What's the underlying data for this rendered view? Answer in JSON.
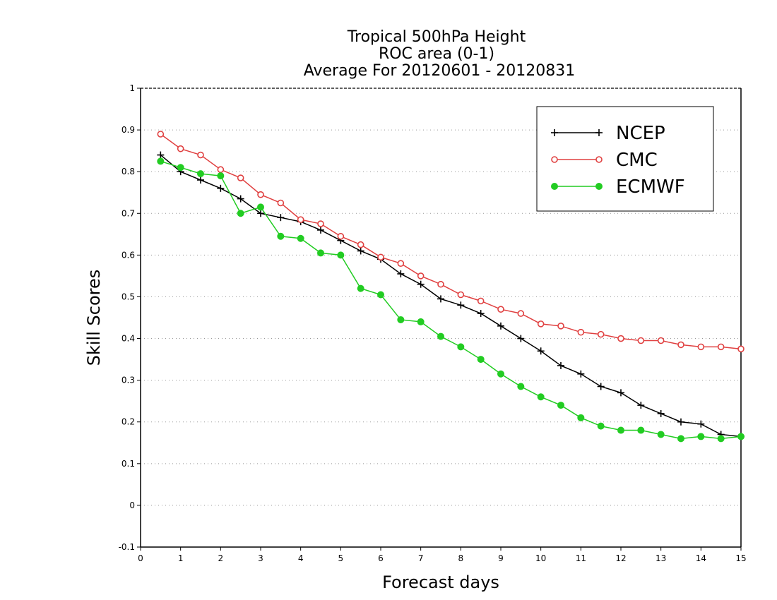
{
  "chart_data": {
    "type": "line",
    "title_lines": [
      "Tropical 500hPa Height",
      "ROC area (0-1)",
      "Average For 20120601 - 20120831"
    ],
    "xlabel": "Forecast days",
    "ylabel": "Skill Scores",
    "xlim": [
      0,
      15
    ],
    "ylim": [
      -0.1,
      1
    ],
    "x_ticks": [
      "0",
      "1",
      "2",
      "3",
      "4",
      "5",
      "6",
      "7",
      "8",
      "9",
      "10",
      "11",
      "12",
      "13",
      "14",
      "15"
    ],
    "y_ticks": [
      "-0.1",
      "0",
      "0.1",
      "0.2",
      "0.3",
      "0.4",
      "0.5",
      "0.6",
      "0.7",
      "0.8",
      "0.9",
      "1"
    ],
    "grid": "horizontal dotted",
    "legend_position": "top-right",
    "x": [
      0.5,
      1,
      1.5,
      2,
      2.5,
      3,
      3.5,
      4,
      4.5,
      5,
      5.5,
      6,
      6.5,
      7,
      7.5,
      8,
      8.5,
      9,
      9.5,
      10,
      10.5,
      11,
      11.5,
      12,
      12.5,
      13,
      13.5,
      14,
      14.5,
      15
    ],
    "series": [
      {
        "name": "NCEP",
        "color": "#000000",
        "marker": "plus",
        "values": [
          0.84,
          0.8,
          0.78,
          0.76,
          0.735,
          0.7,
          0.69,
          0.68,
          0.66,
          0.635,
          0.61,
          0.59,
          0.555,
          0.53,
          0.495,
          0.48,
          0.46,
          0.43,
          0.4,
          0.37,
          0.335,
          0.315,
          0.285,
          0.27,
          0.24,
          0.22,
          0.2,
          0.195,
          0.17,
          0.165
        ]
      },
      {
        "name": "CMC",
        "color": "#e04040",
        "marker": "open-circle",
        "values": [
          0.89,
          0.855,
          0.84,
          0.805,
          0.785,
          0.745,
          0.725,
          0.685,
          0.675,
          0.645,
          0.625,
          0.595,
          0.58,
          0.55,
          0.53,
          0.505,
          0.49,
          0.47,
          0.46,
          0.435,
          0.43,
          0.415,
          0.41,
          0.4,
          0.395,
          0.395,
          0.385,
          0.38,
          0.38,
          0.375
        ]
      },
      {
        "name": "ECMWF",
        "color": "#22cc22",
        "marker": "filled-circle",
        "values": [
          0.825,
          0.81,
          0.795,
          0.79,
          0.7,
          0.715,
          0.645,
          0.64,
          0.605,
          0.6,
          0.52,
          0.505,
          0.445,
          0.44,
          0.405,
          0.38,
          0.35,
          0.315,
          0.285,
          0.26,
          0.24,
          0.21,
          0.19,
          0.18,
          0.18,
          0.17,
          0.16,
          0.165,
          0.16,
          0.165
        ]
      }
    ]
  }
}
